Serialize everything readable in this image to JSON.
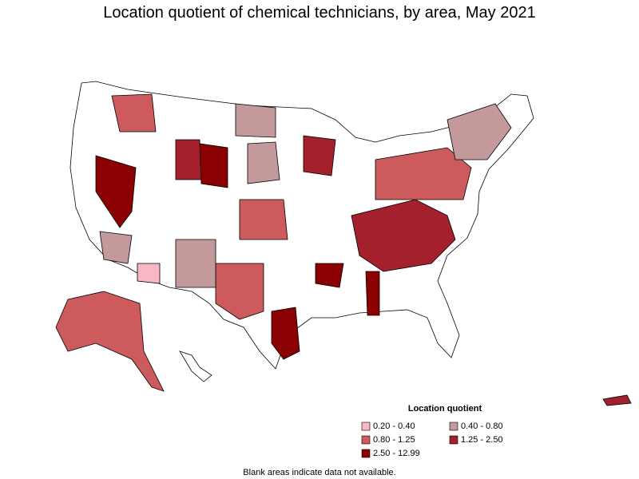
{
  "header": {
    "title": "Location quotient of chemical technicians, by area, May 2021"
  },
  "legend": {
    "title": "Location quotient",
    "items": [
      {
        "label": "0.20 - 0.40",
        "color": "#f7b8c4"
      },
      {
        "label": "0.40 - 0.80",
        "color": "#c4999c"
      },
      {
        "label": "0.80 - 1.25",
        "color": "#cd5a5c"
      },
      {
        "label": "1.25 - 2.50",
        "color": "#a3202c"
      },
      {
        "label": "2.50 - 12.99",
        "color": "#8b0000"
      }
    ]
  },
  "footnote": "Blank areas indicate data not available."
}
